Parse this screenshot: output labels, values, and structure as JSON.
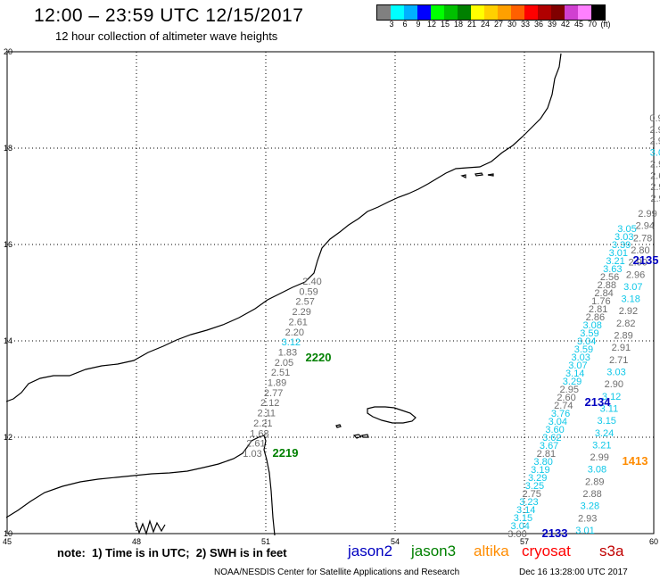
{
  "header": {
    "title": "12:00 – 23:59 UTC 12/15/2017",
    "subtitle": "12 hour collection of altimeter wave heights"
  },
  "color_scale": {
    "colors": [
      "#808080",
      "#00ffff",
      "#00b0ff",
      "#0000ff",
      "#00ff00",
      "#00c000",
      "#008000",
      "#ffff00",
      "#ffd000",
      "#ffa000",
      "#ff6000",
      "#ff0000",
      "#b00000",
      "#800000",
      "#d040d0",
      "#ff80ff",
      "#000000"
    ],
    "labels": [
      "3",
      "6",
      "9",
      "12",
      "15",
      "18",
      "21",
      "24",
      "27",
      "30",
      "33",
      "36",
      "39",
      "42",
      "45",
      "70",
      "(ft)"
    ]
  },
  "map": {
    "lon_ticks": [
      "45",
      "48",
      "51",
      "54",
      "57",
      "60"
    ],
    "lat_ticks": [
      "20",
      "18",
      "16",
      "14",
      "12",
      "10"
    ],
    "pass_labels": [
      {
        "text": "2220",
        "color": "#008000"
      },
      {
        "text": "2219",
        "color": "#008000"
      },
      {
        "text": "2134",
        "color": "#0000c0"
      },
      {
        "text": "2133",
        "color": "#0000c0"
      },
      {
        "text": "2135",
        "color": "#0000c0"
      },
      {
        "text": "1413",
        "color": "#ff8c00"
      }
    ],
    "track_a": [
      "2.40",
      "0.59",
      "2.57",
      "2.29",
      "2.61",
      "2.20",
      "3.12",
      "1.83",
      "2.05",
      "2.51",
      "1.89",
      "2.77",
      "2.12",
      "2.11",
      "2.21",
      "1.68",
      "2.61",
      "1.03"
    ],
    "track_a_colors": [
      "g",
      "g",
      "g",
      "g",
      "g",
      "g",
      "c",
      "g",
      "g",
      "g",
      "g",
      "g",
      "g",
      "g",
      "g",
      "g",
      "g",
      "g"
    ],
    "track_b": [
      "3.05",
      "3.03",
      "3.39",
      "3.01",
      "3.21",
      "3.63",
      "2.56",
      "2.88",
      "2.84",
      "1.76",
      "2.81",
      "2.86",
      "3.08",
      "3.59",
      "3.04",
      "3.59",
      "3.03",
      "3.07",
      "3.14",
      "3.29",
      "2.95",
      "2.60",
      "2.74",
      "3.76",
      "3.04",
      "3.60",
      "3.62",
      "3.67",
      "2.81",
      "3.80",
      "3.19",
      "3.29",
      "3.25",
      "2.75",
      "3.23",
      "3.14",
      "3.15",
      "3.04",
      "3.00"
    ],
    "track_b_colors": [
      "c",
      "c",
      "c",
      "c",
      "c",
      "c",
      "g",
      "g",
      "g",
      "g",
      "g",
      "g",
      "c",
      "c",
      "c",
      "c",
      "c",
      "c",
      "c",
      "c",
      "g",
      "g",
      "g",
      "c",
      "c",
      "c",
      "c",
      "c",
      "g",
      "c",
      "c",
      "c",
      "c",
      "g",
      "c",
      "c",
      "c",
      "c",
      "g"
    ],
    "track_c": [
      "2.99",
      "2.94",
      "2.78",
      "2.80",
      "2.90",
      "2.96",
      "3.07",
      "3.18",
      "2.92",
      "2.82",
      "2.89",
      "2.91",
      "2.71",
      "3.03",
      "2.90",
      "3.12",
      "3.11",
      "3.15",
      "3.24",
      "3.21",
      "2.99",
      "3.08",
      "2.89",
      "2.88",
      "3.28",
      "2.93",
      "3.01"
    ],
    "track_c_colors": [
      "g",
      "g",
      "g",
      "g",
      "g",
      "g",
      "c",
      "c",
      "g",
      "g",
      "g",
      "g",
      "g",
      "c",
      "g",
      "c",
      "c",
      "c",
      "c",
      "c",
      "g",
      "c",
      "g",
      "g",
      "c",
      "g",
      "c"
    ],
    "track_d": [
      "0.9",
      "2.9",
      "2.9",
      "3.0",
      "2.9",
      "2.6",
      "2.9",
      "2.9"
    ],
    "track_d_colors": [
      "g",
      "g",
      "g",
      "c",
      "g",
      "g",
      "g",
      "g"
    ]
  },
  "footer": {
    "note": "note:  1) Time is in UTC;  2) SWH is in feet",
    "satellites": [
      {
        "name": "jason2",
        "color": "#0000c0"
      },
      {
        "name": "jason3",
        "color": "#008000"
      },
      {
        "name": "altika",
        "color": "#ff8c00"
      },
      {
        "name": "cryosat",
        "color": "#ff0000"
      },
      {
        "name": "s3a",
        "color": "#c00000"
      }
    ],
    "credit": "NOAA/NESDIS Center for Satellite Applications and Research",
    "timestamp": "Dec 16 13:28:00 UTC 2017"
  }
}
